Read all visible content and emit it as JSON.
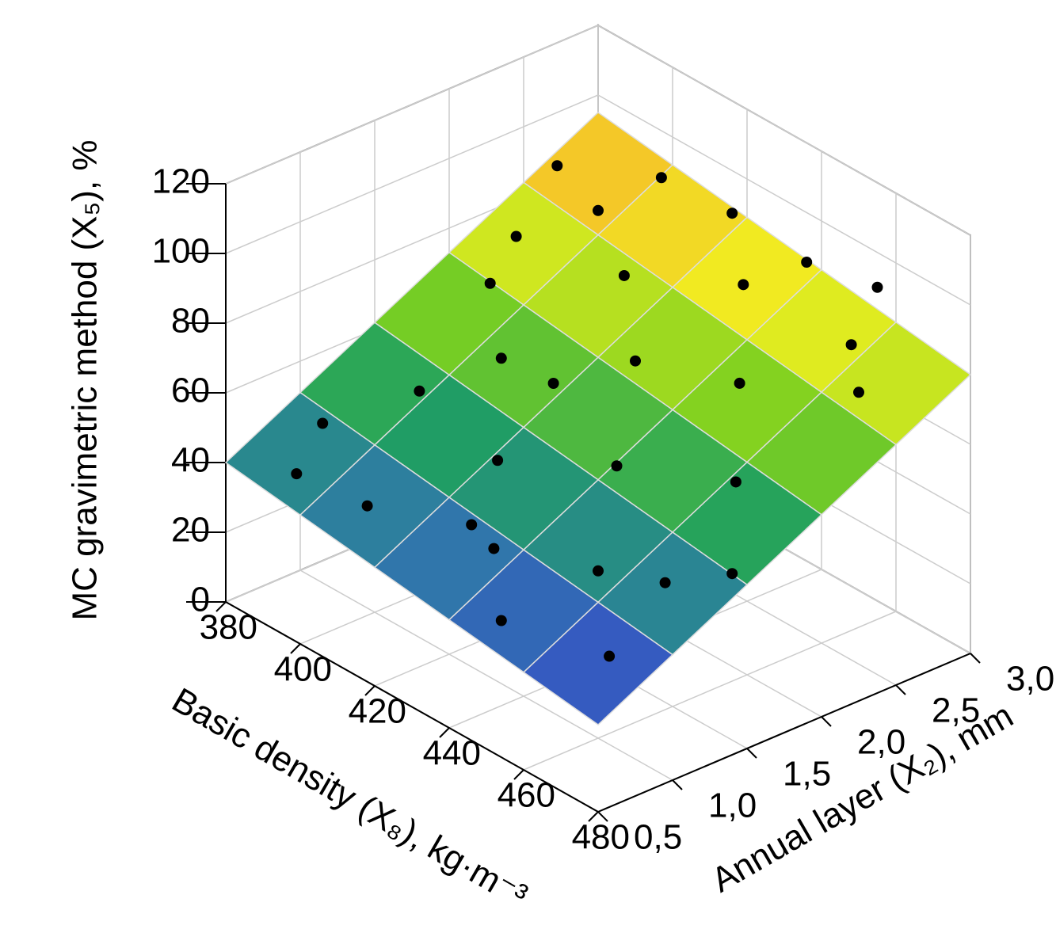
{
  "chart_data": {
    "type": "surface3d",
    "xlabel": "Basic density (X₈), kg·m⁻³",
    "ylabel": "Annual layer (X₂), mm",
    "zlabel": "MC gravimetric method (X₅), %",
    "xlim": [
      380,
      480
    ],
    "ylim": [
      0.5,
      3.0
    ],
    "zlim": [
      0,
      120
    ],
    "xticks": [
      380,
      400,
      420,
      440,
      460,
      480
    ],
    "yticks": [
      {
        "value": 0.5,
        "label": "0,5"
      },
      {
        "value": 1.0,
        "label": "1,0"
      },
      {
        "value": 1.5,
        "label": "1,5"
      },
      {
        "value": 2.0,
        "label": "2,0"
      },
      {
        "value": 2.5,
        "label": "2,5"
      },
      {
        "value": 3.0,
        "label": "3,0"
      }
    ],
    "zticks": [
      0,
      20,
      40,
      60,
      80,
      100,
      120
    ],
    "grid": true,
    "surface": {
      "x": [
        380,
        400,
        420,
        440,
        460,
        480
      ],
      "y": [
        0.5,
        1.0,
        1.5,
        2.0,
        2.5,
        3.0
      ],
      "z": [
        [
          40,
          51,
          62,
          73,
          84,
          95
        ],
        [
          37,
          48,
          59,
          70,
          81,
          92
        ],
        [
          34,
          45,
          56,
          67,
          78,
          89
        ],
        [
          31,
          42,
          53,
          64,
          75,
          86
        ],
        [
          28,
          39,
          50,
          61,
          72,
          83
        ],
        [
          25,
          36,
          47,
          58,
          69,
          80
        ]
      ],
      "colors": [
        "#3b3bd8",
        "#2f7aa8",
        "#1fa060",
        "#7cd020",
        "#f0f020",
        "#f8a030"
      ]
    },
    "points": {
      "x": [
        385,
        390,
        395,
        400,
        405,
        410,
        415,
        420,
        425,
        430,
        435,
        440,
        445,
        450,
        455,
        460,
        465,
        470,
        475,
        480,
        390,
        400,
        410,
        420,
        430,
        440,
        450,
        460,
        470,
        395
      ],
      "y": [
        2.6,
        2.2,
        1.9,
        2.5,
        2.8,
        1.6,
        2.3,
        2.9,
        1.2,
        2.0,
        2.6,
        0.8,
        1.5,
        2.2,
        3.0,
        1.0,
        1.8,
        2.5,
        0.7,
        1.4,
        0.9,
        1.3,
        0.7,
        1.7,
        0.9,
        2.9,
        0.6,
        2.7,
        1.2,
        0.6
      ],
      "z": [
        90,
        80,
        75,
        88,
        95,
        68,
        82,
        92,
        55,
        72,
        86,
        46,
        60,
        74,
        90,
        48,
        62,
        78,
        38,
        52,
        50,
        58,
        42,
        65,
        45,
        90,
        35,
        82,
        47,
        44
      ],
      "color": "#000000"
    }
  }
}
